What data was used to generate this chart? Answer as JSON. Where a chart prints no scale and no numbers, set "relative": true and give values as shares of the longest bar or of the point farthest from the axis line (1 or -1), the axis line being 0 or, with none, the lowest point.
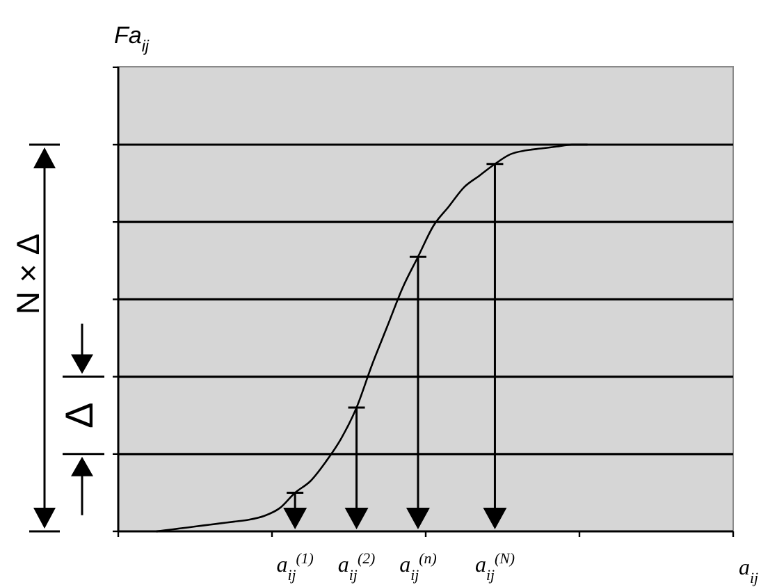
{
  "chart_data": {
    "type": "line",
    "ylabel": "Fa$_{ij}$",
    "xlabel": "a$_{ij}$",
    "categories": [
      null,
      null,
      null,
      null,
      null,
      null,
      null,
      null,
      null,
      null,
      null,
      "a$_{ij}$$^{(1)}$",
      null,
      null,
      null,
      "a$_{ij}$$^{(2)}$",
      null,
      null,
      null,
      "a$_{ij}$$^{(n)}$",
      null,
      null,
      null,
      null,
      "a$_{ij}$$^{(N)}$",
      null,
      null,
      null,
      null,
      null,
      null,
      null,
      null,
      null,
      null,
      null,
      null,
      null,
      null,
      null
    ],
    "series": [
      {
        "color": "#000000",
        "values": [
          null,
          null,
          0,
          0.005,
          0.01,
          0.015,
          0.02,
          0.025,
          0.03,
          0.04,
          0.06,
          0.1,
          0.13,
          0.18,
          0.24,
          0.32,
          0.43,
          0.53,
          0.63,
          0.71,
          0.79,
          0.84,
          0.89,
          0.92,
          0.95,
          0.975,
          0.985,
          0.99,
          0.995,
          1,
          1,
          null,
          null,
          null,
          null,
          null,
          null,
          null,
          null,
          null
        ]
      }
    ],
    "relative": true,
    "grid": "y",
    "annotations": [
      "N × Δ",
      "Δ"
    ]
  }
}
